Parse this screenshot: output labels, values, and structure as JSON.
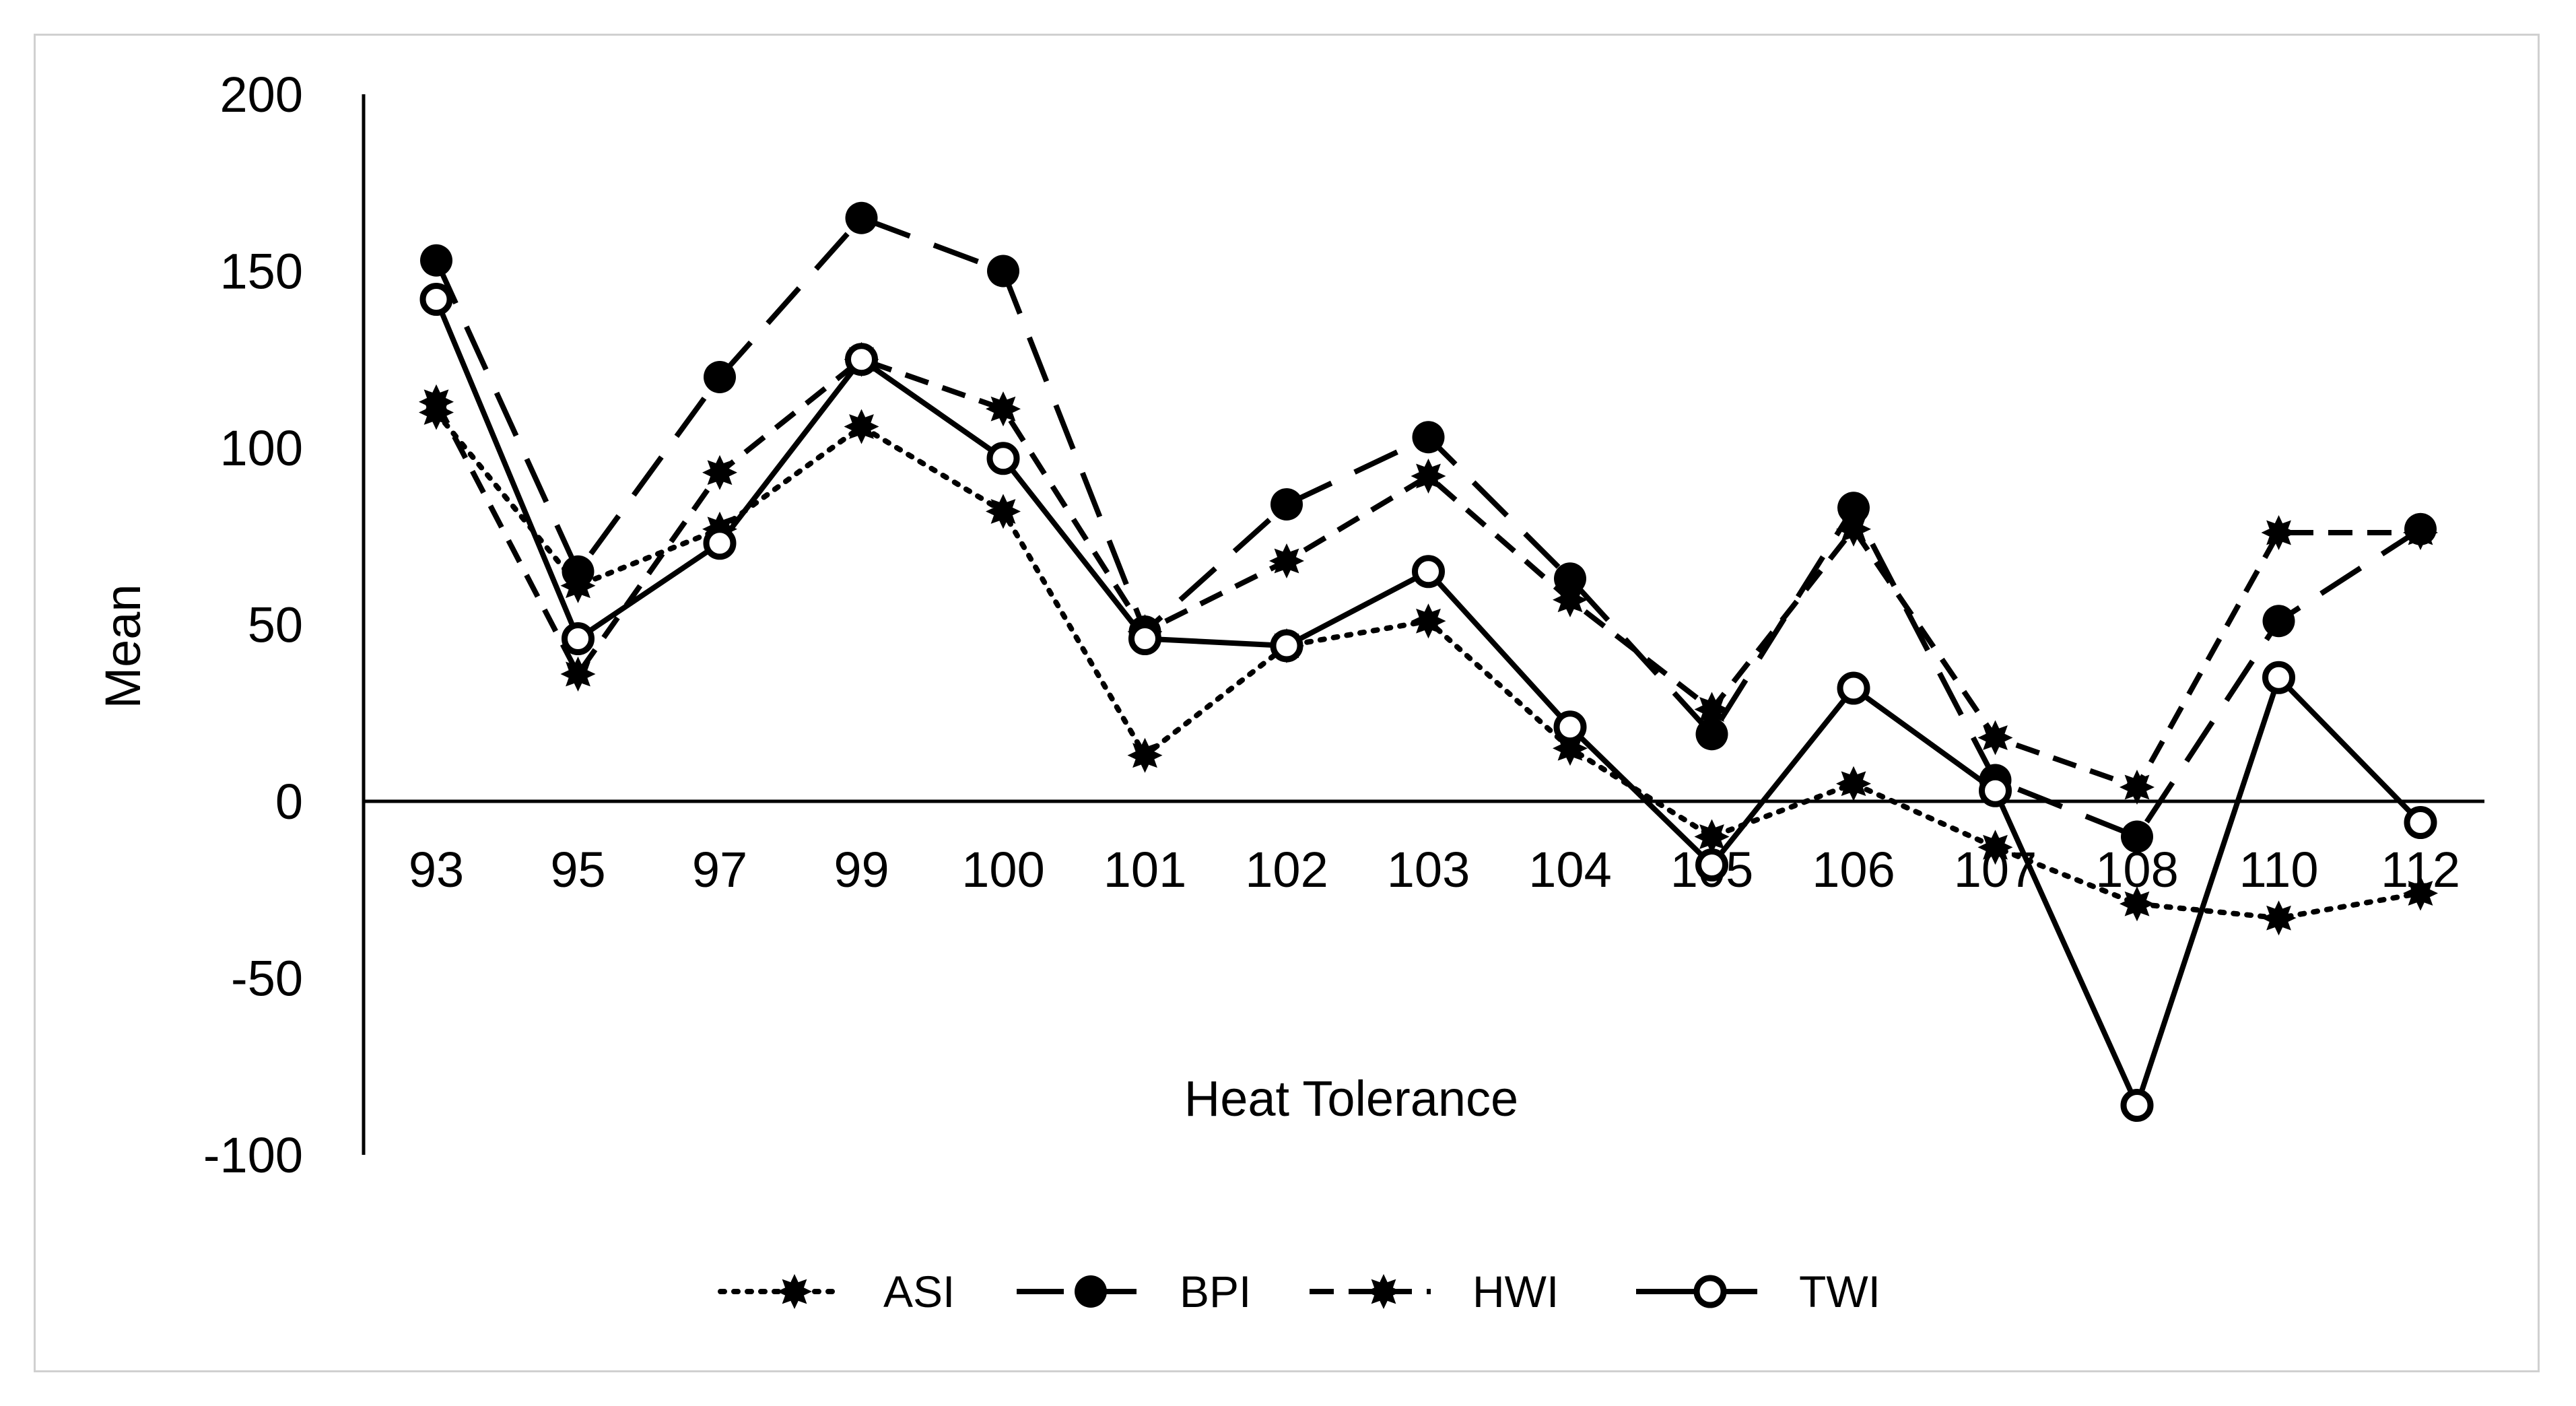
{
  "chart_data": {
    "type": "line",
    "title": "",
    "xlabel": "Heat Tolerance",
    "ylabel": "Mean",
    "categories": [
      "93",
      "95",
      "97",
      "99",
      "100",
      "101",
      "102",
      "103",
      "104",
      "105",
      "106",
      "107",
      "108",
      "110",
      "112"
    ],
    "ylim": [
      -100,
      200
    ],
    "yticks": [
      -100,
      -50,
      0,
      50,
      100,
      150,
      200
    ],
    "grid": false,
    "legend_position": "bottom",
    "series": [
      {
        "name": "ASI",
        "line_style": "dotted",
        "marker": "filled-star",
        "values": [
          110,
          61,
          77,
          106,
          82,
          13,
          44,
          51,
          15,
          -10,
          5,
          -13,
          -29,
          -33,
          -26
        ]
      },
      {
        "name": "BPI",
        "line_style": "long-dash",
        "marker": "filled-circle",
        "values": [
          153,
          65,
          120,
          165,
          150,
          48,
          84,
          103,
          63,
          19,
          83,
          6,
          -10,
          51,
          77
        ]
      },
      {
        "name": "HWI",
        "line_style": "dashed",
        "marker": "filled-star",
        "values": [
          113,
          36,
          93,
          125,
          111,
          48,
          68,
          92,
          57,
          26,
          77,
          18,
          4,
          76,
          76
        ]
      },
      {
        "name": "TWI",
        "line_style": "solid",
        "marker": "open-circle",
        "values": [
          142,
          46,
          73,
          125,
          97,
          46,
          44,
          65,
          21,
          -18,
          32,
          3,
          -86,
          35,
          -6
        ]
      }
    ],
    "colors": {
      "line": "#000000",
      "open_marker_fill": "#ffffff",
      "frame": "#d0d0d0"
    }
  }
}
